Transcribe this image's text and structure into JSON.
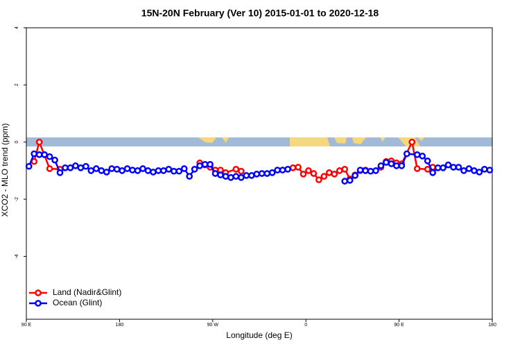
{
  "chart_data": {
    "type": "line",
    "title": "15N-20N February (Ver 10)   2015-01-01 to 2020-12-18",
    "x_label": "Longitude (deg E)",
    "y_label": "XCO2 - MLO trend (ppm)",
    "xlim": [
      90,
      540
    ],
    "xticks": [
      {
        "value": 90,
        "label": "90 E"
      },
      {
        "value": 180,
        "label": "180"
      },
      {
        "value": 270,
        "label": "90 W"
      },
      {
        "value": 360,
        "label": "0"
      },
      {
        "value": 450,
        "label": "90 E"
      },
      {
        "value": 540,
        "label": "180"
      }
    ],
    "ylim": [
      -6.2,
      4.0
    ],
    "yticks": [
      -4,
      -2,
      0,
      2,
      4
    ],
    "legend": "bottom-left",
    "series": [
      {
        "name": "Land (Nadir&Glint)",
        "color": "#ff0000",
        "x": [
          97.5,
          102.5,
          112.5,
          122.5,
          127.5,
          257.5,
          262.5,
          267.5,
          272.5,
          277.5,
          282.5,
          292.5,
          297.5,
          302.5,
          347.5,
          352.5,
          357.5,
          362.5,
          367.5,
          372.5,
          377.5,
          382.5,
          387.5,
          392.5,
          397.5,
          402.5,
          407.5,
          412.5,
          417.5,
          422.5,
          432.5,
          437.5,
          442.5,
          447.5,
          452.5,
          462.5,
          467.5,
          477.5,
          482.5
        ],
        "values": [
          -0.68,
          0.0,
          -0.93,
          -0.95,
          null,
          -0.73,
          -0.8,
          -0.88,
          -0.98,
          -0.98,
          -1.07,
          -0.95,
          -1.02,
          null,
          -0.9,
          -0.88,
          -1.12,
          -1.0,
          -1.1,
          -1.32,
          -1.2,
          -1.07,
          -1.12,
          -1.0,
          -0.95,
          -1.29,
          -1.15,
          -1.0,
          -0.98,
          null,
          -0.88,
          -0.68,
          -0.66,
          -0.73,
          -0.76,
          0.0,
          -0.93,
          -0.95,
          -0.88
        ]
      },
      {
        "name": "Ocean (Glint)",
        "color": "#0000ff",
        "x": [
          92.5,
          97.5,
          102.5,
          107.5,
          112.5,
          117.5,
          122.5,
          127.5,
          132.5,
          137.5,
          142.5,
          147.5,
          152.5,
          157.5,
          162.5,
          167.5,
          172.5,
          177.5,
          182.5,
          187.5,
          192.5,
          197.5,
          202.5,
          207.5,
          212.5,
          217.5,
          222.5,
          227.5,
          232.5,
          237.5,
          242.5,
          247.5,
          252.5,
          257.5,
          262.5,
          267.5,
          272.5,
          277.5,
          282.5,
          287.5,
          292.5,
          297.5,
          302.5,
          307.5,
          312.5,
          317.5,
          322.5,
          327.5,
          332.5,
          337.5,
          342.5,
          347.5,
          397.5,
          402.5,
          407.5,
          412.5,
          417.5,
          422.5,
          427.5,
          432.5,
          437.5,
          442.5,
          447.5,
          452.5,
          457.5,
          467.5,
          472.5,
          477.5,
          482.5,
          487.5,
          492.5,
          497.5,
          502.5,
          507.5,
          512.5,
          517.5,
          522.5,
          527.5,
          532.5,
          537.5
        ],
        "values": [
          -0.85,
          -0.41,
          -0.44,
          -0.44,
          -0.51,
          -0.63,
          -1.07,
          -0.9,
          -0.9,
          -0.83,
          -0.9,
          -0.85,
          -1.0,
          -0.93,
          -1.0,
          -1.05,
          -0.93,
          -0.95,
          -1.0,
          -0.93,
          -0.98,
          -1.0,
          -0.93,
          -1.0,
          -1.05,
          -1.0,
          -1.0,
          -0.95,
          -1.02,
          -1.02,
          -0.93,
          -1.2,
          -0.95,
          -0.83,
          -0.78,
          -0.78,
          -1.1,
          -1.15,
          -1.2,
          -1.24,
          -1.2,
          -1.24,
          -1.17,
          -1.17,
          -1.12,
          -1.1,
          -1.1,
          -1.07,
          -0.98,
          -0.98,
          -0.95,
          null,
          -1.37,
          -1.34,
          -1.17,
          -0.98,
          -1.0,
          -1.02,
          -1.0,
          -0.83,
          -0.71,
          -0.76,
          -0.83,
          -0.83,
          -0.41,
          -0.44,
          -0.49,
          -0.66,
          -1.07,
          -0.9,
          -0.9,
          -0.8,
          -0.88,
          -0.88,
          -1.0,
          -0.93,
          -1.0,
          -1.05,
          -0.95,
          -0.98
        ]
      }
    ]
  }
}
